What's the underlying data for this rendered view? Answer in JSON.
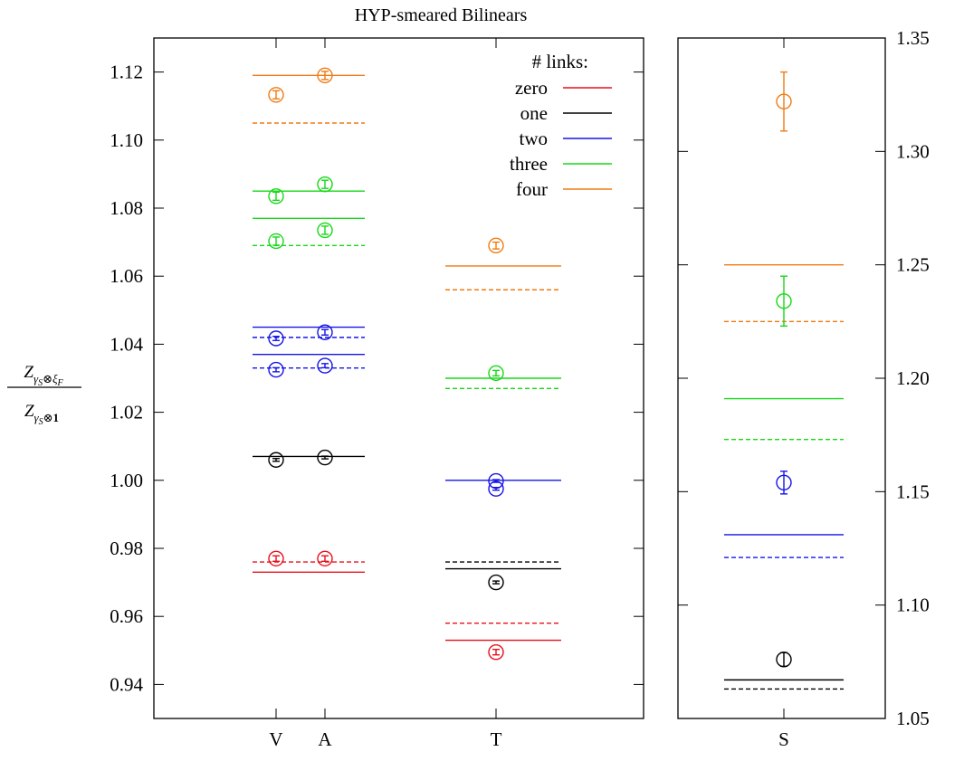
{
  "chart_data": [
    {
      "type": "scatter",
      "title": "HYP-smeared Bilinears",
      "ylabel": "Z_{γ_S⊗ξ_F} / Z_{γ_S⊗1}",
      "ylim": [
        0.93,
        1.13
      ],
      "yticks": [
        "0.94",
        "0.96",
        "0.98",
        "1.00",
        "1.02",
        "1.04",
        "1.06",
        "1.08",
        "1.10",
        "1.12"
      ],
      "categories": [
        "V",
        "A",
        "T"
      ],
      "legend": {
        "title": "# links:",
        "position": "top-right",
        "entries": [
          {
            "label": "zero",
            "color": "#e8101a"
          },
          {
            "label": "one",
            "color": "#000000"
          },
          {
            "label": "two",
            "color": "#1515e6"
          },
          {
            "label": "three",
            "color": "#16d816"
          },
          {
            "label": "four",
            "color": "#f07a12"
          }
        ]
      },
      "lines": [
        {
          "group": "VA",
          "color": "#f07a12",
          "style": "solid",
          "y": 1.119
        },
        {
          "group": "VA",
          "color": "#f07a12",
          "style": "dashed",
          "y": 1.105
        },
        {
          "group": "VA",
          "color": "#16d816",
          "style": "solid",
          "y": 1.085
        },
        {
          "group": "VA",
          "color": "#16d816",
          "style": "solid",
          "y": 1.077
        },
        {
          "group": "VA",
          "color": "#16d816",
          "style": "dashed",
          "y": 1.069
        },
        {
          "group": "VA",
          "color": "#1515e6",
          "style": "solid",
          "y": 1.045
        },
        {
          "group": "VA",
          "color": "#1515e6",
          "style": "dashed",
          "y": 1.042
        },
        {
          "group": "VA",
          "color": "#1515e6",
          "style": "solid",
          "y": 1.037
        },
        {
          "group": "VA",
          "color": "#1515e6",
          "style": "dashed",
          "y": 1.033
        },
        {
          "group": "VA",
          "color": "#000000",
          "style": "solid",
          "y": 1.007
        },
        {
          "group": "VA",
          "color": "#e8101a",
          "style": "dashed",
          "y": 0.976
        },
        {
          "group": "VA",
          "color": "#e8101a",
          "style": "solid",
          "y": 0.973
        },
        {
          "group": "T",
          "color": "#f07a12",
          "style": "solid",
          "y": 1.063
        },
        {
          "group": "T",
          "color": "#f07a12",
          "style": "dashed",
          "y": 1.056
        },
        {
          "group": "T",
          "color": "#16d816",
          "style": "solid",
          "y": 1.03
        },
        {
          "group": "T",
          "color": "#16d816",
          "style": "dashed",
          "y": 1.027
        },
        {
          "group": "T",
          "color": "#1515e6",
          "style": "solid",
          "y": 1.0
        },
        {
          "group": "T",
          "color": "#000000",
          "style": "dashed",
          "y": 0.976
        },
        {
          "group": "T",
          "color": "#000000",
          "style": "solid",
          "y": 0.974
        },
        {
          "group": "T",
          "color": "#e8101a",
          "style": "dashed",
          "y": 0.958
        },
        {
          "group": "T",
          "color": "#e8101a",
          "style": "solid",
          "y": 0.953
        }
      ],
      "points": [
        {
          "x": "V",
          "y": 1.1133,
          "err": 0.0012,
          "color": "#f07a12"
        },
        {
          "x": "A",
          "y": 1.119,
          "err": 0.0012,
          "color": "#f07a12"
        },
        {
          "x": "V",
          "y": 1.0835,
          "err": 0.0012,
          "color": "#16d816"
        },
        {
          "x": "A",
          "y": 1.087,
          "err": 0.0012,
          "color": "#16d816"
        },
        {
          "x": "V",
          "y": 1.0703,
          "err": 0.0012,
          "color": "#16d816"
        },
        {
          "x": "A",
          "y": 1.0735,
          "err": 0.0012,
          "color": "#16d816"
        },
        {
          "x": "V",
          "y": 1.0417,
          "err": 0.0006,
          "color": "#1515e6"
        },
        {
          "x": "A",
          "y": 1.0435,
          "err": 0.0008,
          "color": "#1515e6"
        },
        {
          "x": "V",
          "y": 1.0325,
          "err": 0.0006,
          "color": "#1515e6"
        },
        {
          "x": "A",
          "y": 1.0337,
          "err": 0.0006,
          "color": "#1515e6"
        },
        {
          "x": "V",
          "y": 1.006,
          "err": 0.0004,
          "color": "#000000"
        },
        {
          "x": "A",
          "y": 1.0067,
          "err": 0.0004,
          "color": "#000000"
        },
        {
          "x": "V",
          "y": 0.977,
          "err": 0.0008,
          "color": "#e8101a"
        },
        {
          "x": "A",
          "y": 0.977,
          "err": 0.0008,
          "color": "#e8101a"
        },
        {
          "x": "T",
          "y": 1.069,
          "err": 0.001,
          "color": "#f07a12"
        },
        {
          "x": "T",
          "y": 1.0315,
          "err": 0.0008,
          "color": "#16d816"
        },
        {
          "x": "T",
          "y": 0.9998,
          "err": 0.0004,
          "color": "#1515e6"
        },
        {
          "x": "T",
          "y": 0.9975,
          "err": 0.0004,
          "color": "#1515e6"
        },
        {
          "x": "T",
          "y": 0.97,
          "err": 0.0004,
          "color": "#000000"
        },
        {
          "x": "T",
          "y": 0.9495,
          "err": 0.0008,
          "color": "#e8101a"
        }
      ]
    },
    {
      "type": "scatter",
      "ylim": [
        1.05,
        1.35
      ],
      "yticks": [
        "1.05",
        "1.10",
        "1.15",
        "1.20",
        "1.25",
        "1.30",
        "1.35"
      ],
      "categories": [
        "S"
      ],
      "lines": [
        {
          "color": "#f07a12",
          "style": "solid",
          "y": 1.25
        },
        {
          "color": "#f07a12",
          "style": "dashed",
          "y": 1.225
        },
        {
          "color": "#16d816",
          "style": "solid",
          "y": 1.191
        },
        {
          "color": "#16d816",
          "style": "dashed",
          "y": 1.173
        },
        {
          "color": "#1515e6",
          "style": "solid",
          "y": 1.131
        },
        {
          "color": "#1515e6",
          "style": "dashed",
          "y": 1.121
        },
        {
          "color": "#000000",
          "style": "solid",
          "y": 1.067
        },
        {
          "color": "#000000",
          "style": "dashed",
          "y": 1.063
        }
      ],
      "points": [
        {
          "x": "S",
          "y": 1.322,
          "err": 0.013,
          "color": "#f07a12"
        },
        {
          "x": "S",
          "y": 1.234,
          "err": 0.011,
          "color": "#16d816"
        },
        {
          "x": "S",
          "y": 1.154,
          "err": 0.005,
          "color": "#1515e6"
        },
        {
          "x": "S",
          "y": 1.076,
          "err": 0.003,
          "color": "#000000"
        }
      ]
    }
  ]
}
